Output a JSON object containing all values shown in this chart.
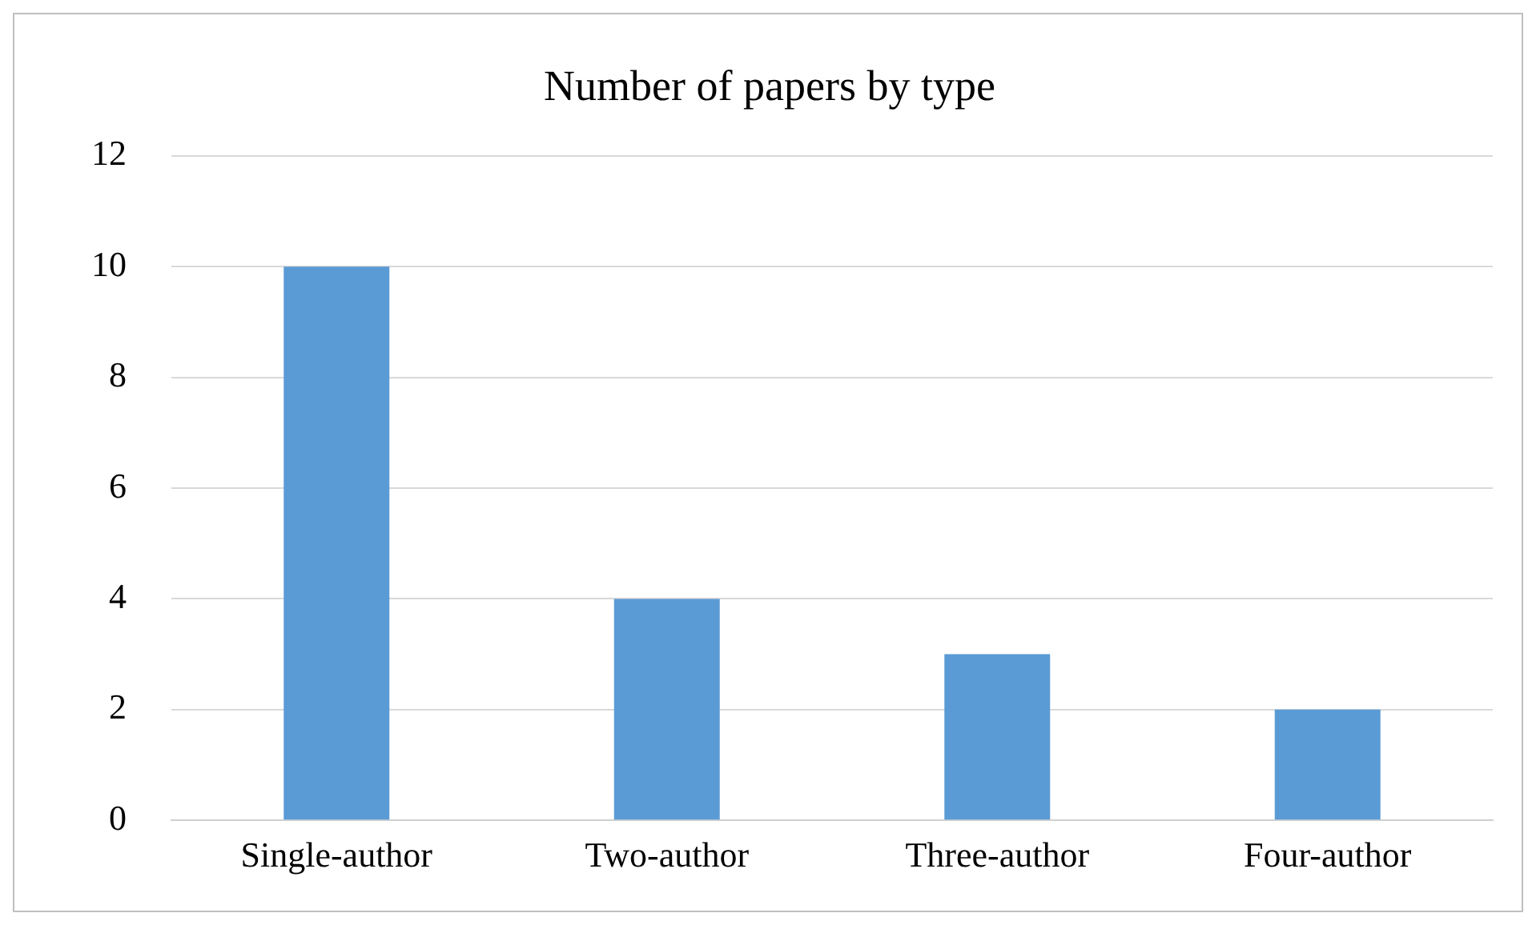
{
  "chart_data": {
    "type": "bar",
    "title": "Number of papers by type",
    "categories": [
      "Single-author",
      "Two-author",
      "Three-author",
      "Four-author"
    ],
    "values": [
      10,
      4,
      3,
      2
    ],
    "color": "#5b9bd5",
    "ylim": [
      0,
      12
    ],
    "yticks": [
      0,
      2,
      4,
      6,
      8,
      10,
      12
    ],
    "grid": "y",
    "legend": false
  }
}
